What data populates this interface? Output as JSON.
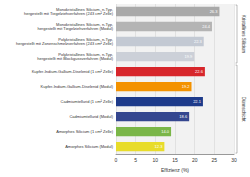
{
  "chart_data": {
    "type": "bar",
    "orientation": "horizontal",
    "categories": [
      "Monokristallines Silicium, n-Typ,\nhergestellt mit Tiegelziehverfahren (243 cm² Zelle)",
      "Monokristallines Silicium, n-Typ,\nhergestellt mit Tiegelziehverfahren (Modul)",
      "Polykristallines Silicium, n-Typ,\nhergestellt mit Zonenschmelzverfahren (243 cm² Zelle)",
      "Polykristallines Silicium, n-Typ,\nhergestellt mit Blockgussverfahren (Modul)",
      "Kupfer-Indium-Gallium-Diselenid (1 cm² Zelle)",
      "Kupfer-Indium-Gallium-Diselenid (Modul)",
      "Cadmiumtellurid (1 cm² Zelle)",
      "Cadmiumtellurid (Modul)",
      "Amorphes Silicium (1 cm² Zelle)",
      "Amorphes Silicium (Modul)"
    ],
    "values": [
      26.3,
      24.4,
      22.3,
      19.9,
      22.6,
      19.2,
      22.1,
      18.6,
      14.0,
      12.3
    ],
    "value_labels": [
      "26.3",
      "24.4",
      "22.3",
      "19.9",
      "22.6",
      "19.2",
      "22.1",
      "18.6",
      "14.0",
      "12.3"
    ],
    "colors": [
      "#a9a9a9",
      "#b4b4b4",
      "#c3c9d3",
      "#ccd0d8",
      "#d7262b",
      "#f39200",
      "#1d3a8a",
      "#34468f",
      "#7ab648",
      "#e8dc2a"
    ],
    "data_labels": true,
    "xlabel": "Effizienz (%)",
    "xlim": [
      0,
      30
    ],
    "xticks": [
      0,
      5,
      10,
      15,
      20,
      25,
      30
    ],
    "grid": true,
    "groups": [
      {
        "label": "Kristallines Silicium",
        "count": 4
      },
      {
        "label": "Dünnschicht",
        "count": 6
      }
    ]
  }
}
